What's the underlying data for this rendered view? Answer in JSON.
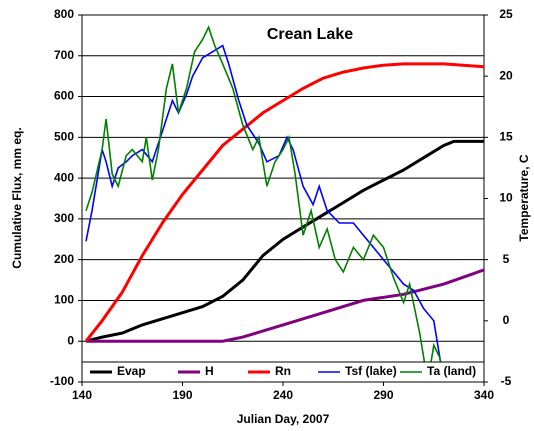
{
  "chart_data": {
    "type": "line",
    "title": "Crean Lake",
    "x_label": "Julian Day, 2007",
    "y_label": "Cumulative Flux, mm eq.",
    "y2_label": "Temperature, C",
    "xlim": [
      140,
      340
    ],
    "xticks": [
      140,
      190,
      240,
      290,
      340
    ],
    "ylim": [
      -100,
      800
    ],
    "yticks": [
      -100,
      0,
      100,
      200,
      300,
      400,
      500,
      600,
      700,
      800
    ],
    "y2lim": [
      -5,
      25
    ],
    "y2ticks": [
      -5,
      0,
      5,
      10,
      15,
      20,
      25
    ],
    "grid": true,
    "legend": "bottom",
    "series": [
      {
        "name": "Evap",
        "color": "#000000",
        "x": [
          142,
          150,
          160,
          170,
          180,
          190,
          200,
          210,
          220,
          230,
          240,
          250,
          260,
          270,
          280,
          290,
          300,
          310,
          320,
          325,
          340
        ],
        "values": [
          0,
          10,
          20,
          40,
          55,
          70,
          85,
          110,
          150,
          210,
          250,
          280,
          310,
          340,
          370,
          395,
          420,
          450,
          480,
          490,
          490
        ]
      },
      {
        "name": "H",
        "color": "#800080",
        "x": [
          142,
          180,
          210,
          220,
          240,
          250,
          260,
          280,
          300,
          320,
          340
        ],
        "values": [
          0,
          0,
          0,
          10,
          40,
          55,
          70,
          100,
          115,
          140,
          175
        ]
      },
      {
        "name": "Rn",
        "color": "#ff0000",
        "x": [
          142,
          150,
          160,
          170,
          180,
          190,
          200,
          210,
          220,
          230,
          240,
          250,
          260,
          270,
          280,
          290,
          300,
          320,
          340
        ],
        "values": [
          0,
          50,
          120,
          210,
          290,
          360,
          420,
          480,
          520,
          560,
          590,
          620,
          645,
          660,
          670,
          677,
          680,
          680,
          673
        ]
      },
      {
        "name": "Tsf (lake)",
        "color": "#0000ff",
        "axis": "y2",
        "x": [
          142,
          145,
          148,
          150,
          152,
          155,
          158,
          162,
          165,
          170,
          175,
          180,
          185,
          188,
          192,
          195,
          200,
          205,
          210,
          213,
          218,
          222,
          228,
          232,
          238,
          242,
          245,
          250,
          255,
          258,
          262,
          268,
          275,
          280,
          285,
          290,
          295,
          300,
          305,
          310,
          315,
          318,
          320
        ],
        "values": [
          6.5,
          9,
          12,
          14,
          13,
          11,
          12.5,
          13,
          13.5,
          14,
          13,
          15.5,
          18,
          17,
          18.5,
          20,
          21.5,
          22,
          22.5,
          21,
          18,
          16,
          14.5,
          13,
          13.5,
          15,
          14,
          11,
          9.5,
          11,
          9,
          8,
          8,
          7,
          6,
          5,
          4,
          3,
          2.5,
          1,
          0,
          -3,
          -5
        ]
      },
      {
        "name": "Ta (land)",
        "color": "#008000",
        "axis": "y2",
        "x": [
          142,
          145,
          150,
          152,
          155,
          158,
          162,
          165,
          170,
          172,
          175,
          178,
          182,
          185,
          188,
          192,
          196,
          200,
          203,
          206,
          210,
          215,
          220,
          225,
          228,
          232,
          236,
          240,
          243,
          246,
          250,
          254,
          258,
          262,
          266,
          270,
          275,
          280,
          285,
          290,
          295,
          300,
          303,
          308,
          312,
          315,
          318,
          320
        ],
        "values": [
          9,
          10.5,
          14,
          16.5,
          12,
          11,
          13.5,
          14,
          13,
          15,
          11.5,
          14,
          19,
          21,
          17,
          19,
          22,
          23,
          24,
          22.5,
          21,
          19,
          16,
          14,
          15,
          11,
          13,
          14,
          15,
          12,
          7,
          9,
          6,
          7.5,
          5,
          4,
          6,
          5,
          7,
          6,
          3.5,
          1.5,
          3,
          -1,
          -5,
          -2,
          -3,
          -5
        ]
      }
    ]
  }
}
